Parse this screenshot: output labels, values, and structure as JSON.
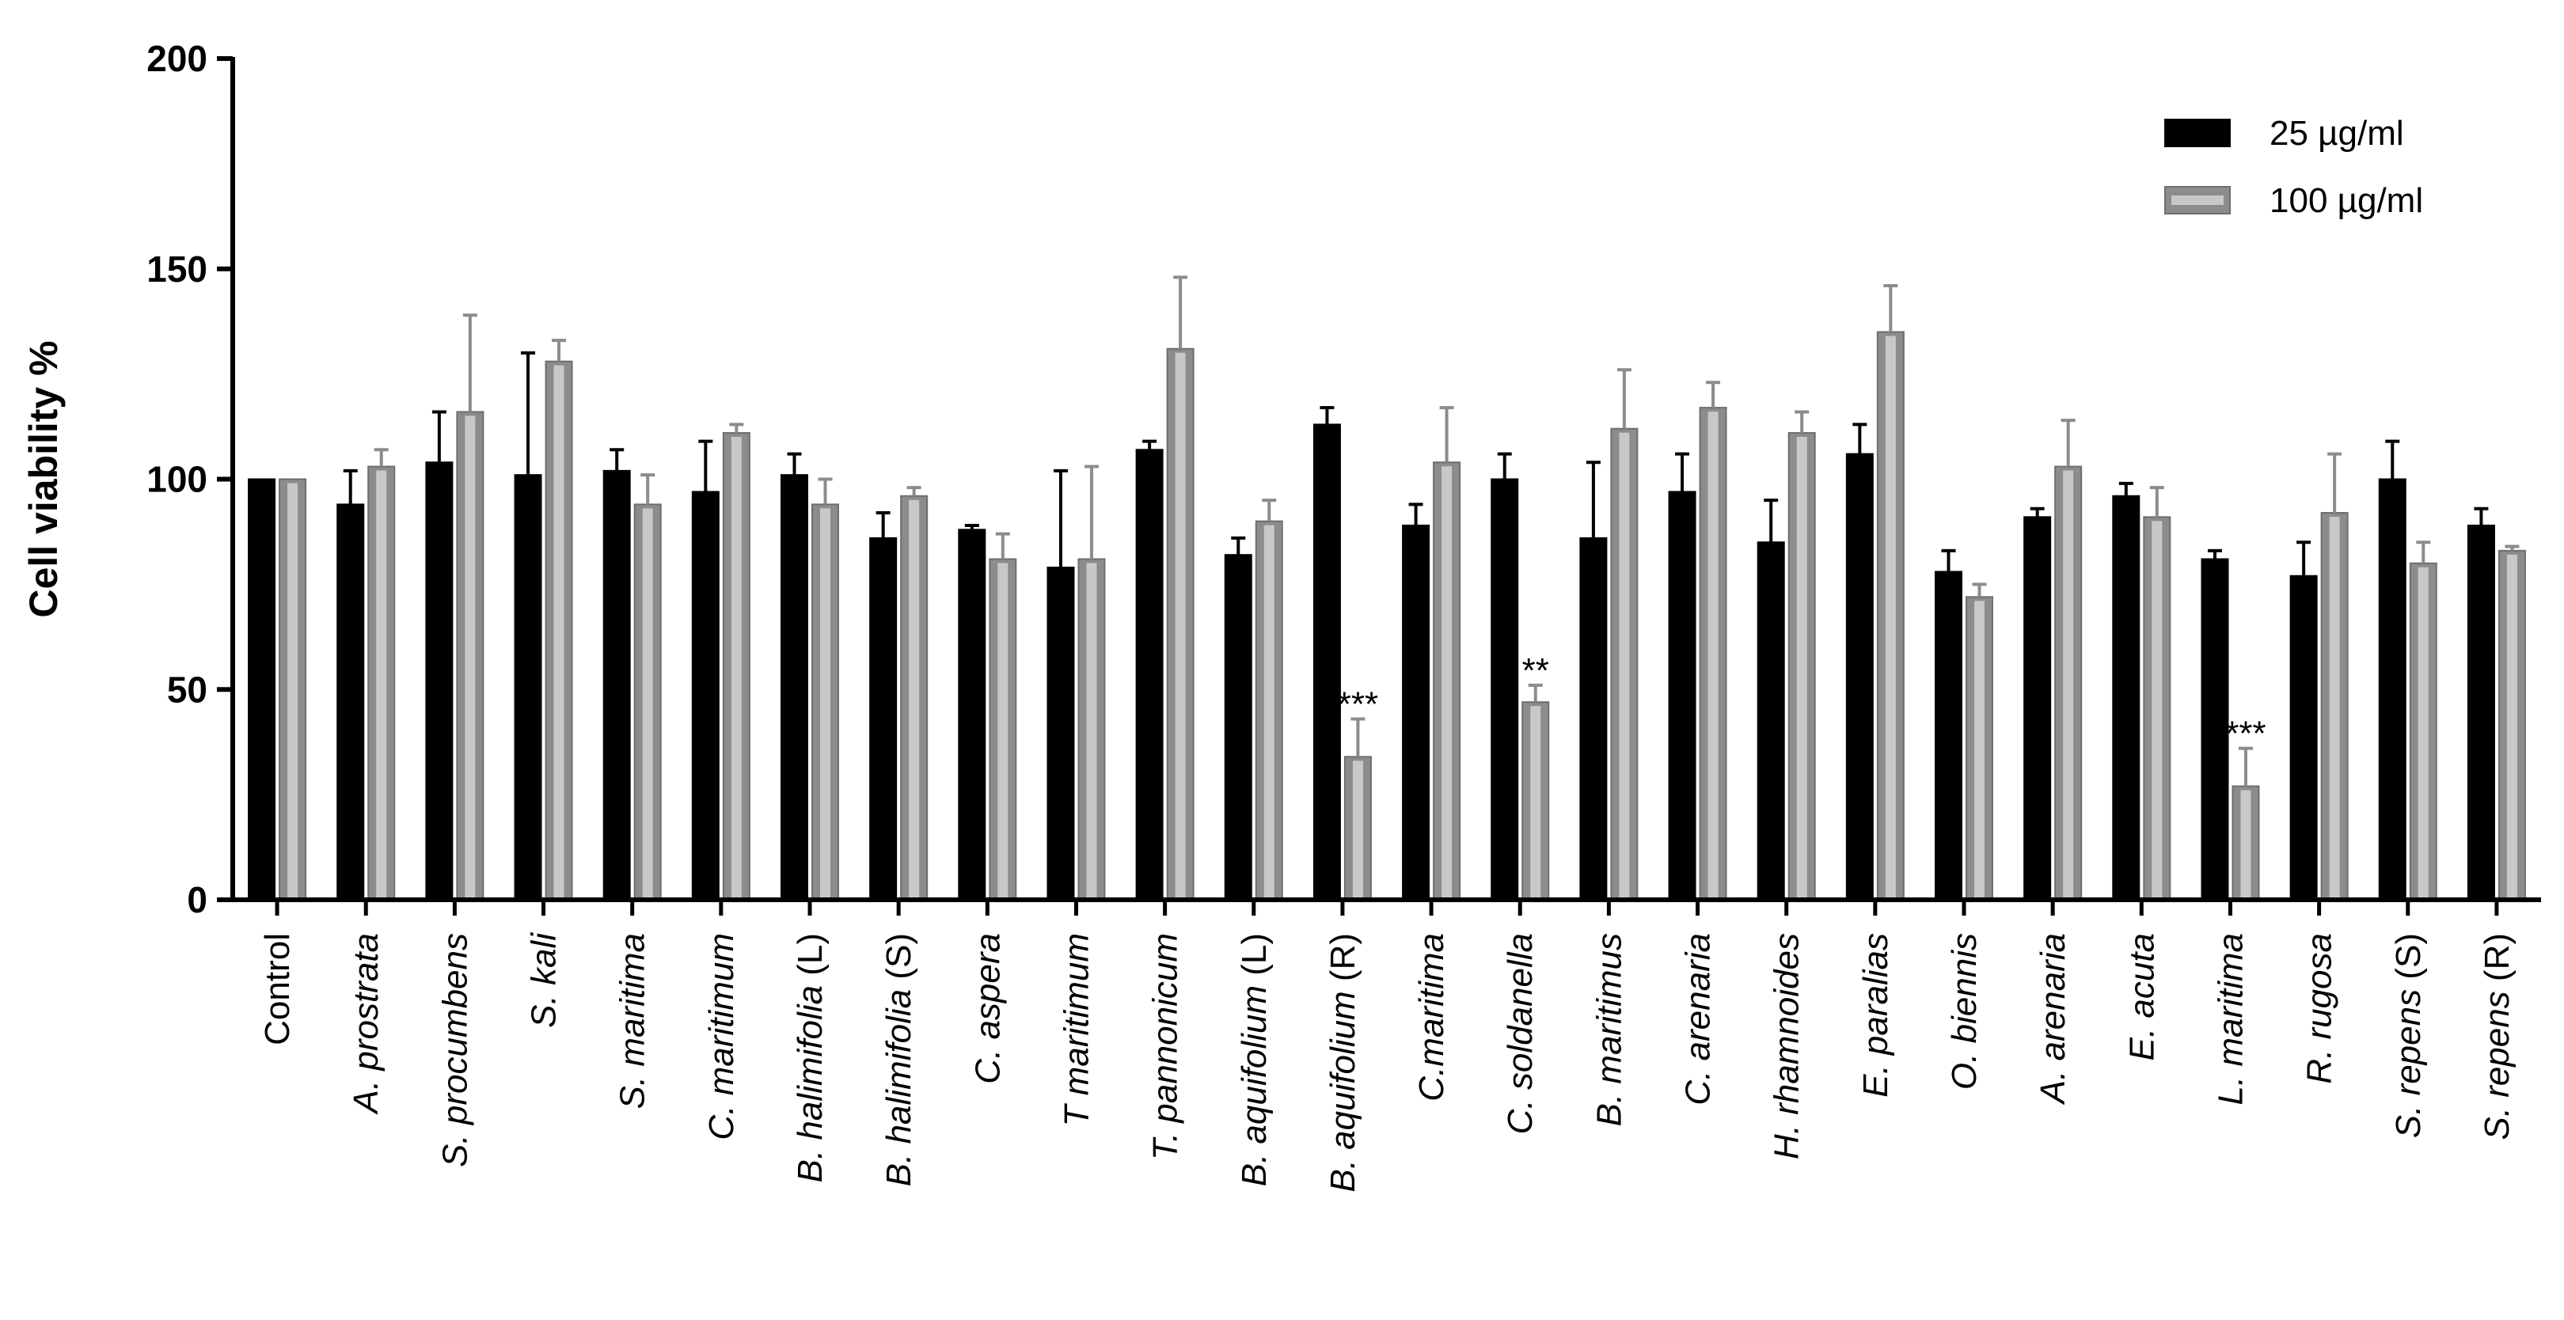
{
  "chart_data": {
    "type": "bar",
    "ylabel": "Cell viability %",
    "xlabel": "",
    "ylim": [
      0,
      200
    ],
    "yticks": [
      0,
      50,
      100,
      150,
      200
    ],
    "categories": [
      {
        "text": "Control",
        "italic": ""
      },
      {
        "text": "A. prostrata",
        "italic": "all"
      },
      {
        "text": "S. procumbens",
        "italic": "all"
      },
      {
        "text": "S. kali",
        "italic": "all"
      },
      {
        "text": "S. maritima",
        "italic": "all"
      },
      {
        "text": "C. maritimum",
        "italic": "all"
      },
      {
        "text": "B. halimifolia (L)",
        "italic": "B. halimifolia"
      },
      {
        "text": "B. halimifolia (S)",
        "italic": "B. halimifolia"
      },
      {
        "text": "C. aspera",
        "italic": "all"
      },
      {
        "text": "T maritimum",
        "italic": "all"
      },
      {
        "text": "T. pannonicum",
        "italic": "all"
      },
      {
        "text": "B. aquifolium (L)",
        "italic": "B. aquifolium"
      },
      {
        "text": "B. aquifolium (R)",
        "italic": "B. aquifolium"
      },
      {
        "text": "C.maritima",
        "italic": "all"
      },
      {
        "text": "C. soldanella",
        "italic": "all"
      },
      {
        "text": "B. maritimus",
        "italic": "all"
      },
      {
        "text": "C. arenaria",
        "italic": "all"
      },
      {
        "text": "H. rhamnoides",
        "italic": "all"
      },
      {
        "text": "E. paralias",
        "italic": "all"
      },
      {
        "text": "O. biennis",
        "italic": "all"
      },
      {
        "text": "A. arenaria",
        "italic": "all"
      },
      {
        "text": "E. acuta",
        "italic": "all"
      },
      {
        "text": "L. maritima",
        "italic": "all"
      },
      {
        "text": "R. rugosa",
        "italic": "all"
      },
      {
        "text": "S. repens (S)",
        "italic": "S. repens"
      },
      {
        "text": "S. repens (R)",
        "italic": "S. repens"
      }
    ],
    "series": [
      {
        "name": "25 µg/ml",
        "color": "#000000",
        "values": [
          100,
          94,
          104,
          101,
          102,
          97,
          101,
          86,
          88,
          79,
          107,
          82,
          113,
          89,
          100,
          86,
          97,
          85,
          106,
          78,
          91,
          96,
          81,
          77,
          100,
          89
        ],
        "errors": [
          0,
          8,
          12,
          29,
          5,
          12,
          5,
          6,
          1,
          23,
          2,
          4,
          4,
          5,
          6,
          18,
          9,
          10,
          7,
          5,
          2,
          3,
          2,
          8,
          9,
          4
        ]
      },
      {
        "name": "100 µg/ml",
        "color": "#8c8c8c",
        "values": [
          100,
          103,
          116,
          128,
          94,
          111,
          94,
          96,
          81,
          81,
          131,
          90,
          34,
          104,
          47,
          112,
          117,
          111,
          135,
          72,
          103,
          91,
          27,
          92,
          80,
          83
        ],
        "errors": [
          0,
          4,
          23,
          5,
          7,
          2,
          6,
          2,
          6,
          22,
          17,
          5,
          9,
          13,
          4,
          14,
          6,
          5,
          11,
          3,
          11,
          7,
          9,
          14,
          5,
          1
        ]
      }
    ],
    "annotations": [
      {
        "category_index": 12,
        "series": 1,
        "text": "***"
      },
      {
        "category_index": 14,
        "series": 1,
        "text": "**"
      },
      {
        "category_index": 22,
        "series": 1,
        "text": "***"
      }
    ],
    "legend_position": "top-right",
    "grid": false
  }
}
